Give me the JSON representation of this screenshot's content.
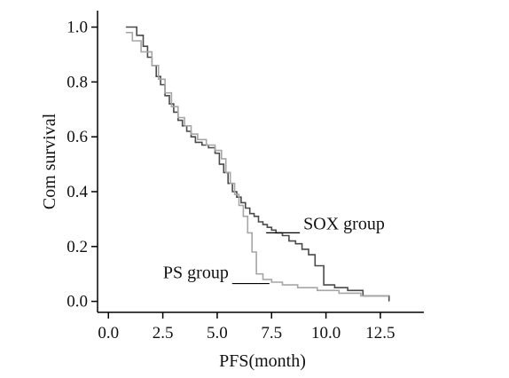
{
  "chart_data": {
    "type": "line",
    "step": true,
    "xlabel": "PFS(month)",
    "ylabel": "Com survival",
    "xlim": [
      -0.5,
      14.5
    ],
    "ylim": [
      -0.04,
      1.06
    ],
    "x_ticks": [
      {
        "value": 0.0,
        "label": "0.0"
      },
      {
        "value": 2.5,
        "label": "2.5"
      },
      {
        "value": 5.0,
        "label": "5.0"
      },
      {
        "value": 7.5,
        "label": "7.5"
      },
      {
        "value": 10.0,
        "label": "10.0"
      },
      {
        "value": 12.5,
        "label": "12.5"
      }
    ],
    "y_ticks": [
      {
        "value": 0.0,
        "label": "0.0"
      },
      {
        "value": 0.2,
        "label": "0.2"
      },
      {
        "value": 0.4,
        "label": "0.4"
      },
      {
        "value": 0.6,
        "label": "0.6"
      },
      {
        "value": 0.8,
        "label": "0.8"
      },
      {
        "value": 1.0,
        "label": "1.0"
      }
    ],
    "grid": false,
    "legend": "none",
    "annotations": [
      {
        "text": "SOX group",
        "series": "SOX group",
        "x": 8.8,
        "y": 0.25
      },
      {
        "text": "PS group",
        "series": "PS group",
        "x": 7.4,
        "y": 0.065
      }
    ],
    "series": [
      {
        "name": "SOX group",
        "color": "#4a4a4a",
        "x": [
          0.8,
          1.3,
          1.6,
          1.8,
          2.0,
          2.2,
          2.4,
          2.6,
          2.8,
          3.0,
          3.2,
          3.4,
          3.6,
          3.8,
          4.0,
          4.3,
          4.6,
          4.9,
          5.1,
          5.3,
          5.5,
          5.7,
          5.9,
          6.1,
          6.3,
          6.5,
          6.7,
          6.9,
          7.1,
          7.3,
          7.5,
          7.7,
          8.0,
          8.3,
          8.6,
          8.9,
          9.2,
          9.5,
          9.9,
          10.4,
          11.0,
          11.7,
          12.9
        ],
        "y": [
          1.0,
          0.97,
          0.93,
          0.89,
          0.86,
          0.82,
          0.79,
          0.75,
          0.72,
          0.69,
          0.66,
          0.64,
          0.62,
          0.6,
          0.58,
          0.57,
          0.56,
          0.54,
          0.5,
          0.47,
          0.43,
          0.4,
          0.38,
          0.36,
          0.34,
          0.32,
          0.31,
          0.29,
          0.28,
          0.27,
          0.26,
          0.25,
          0.24,
          0.22,
          0.21,
          0.19,
          0.17,
          0.13,
          0.06,
          0.05,
          0.04,
          0.02,
          0.0
        ]
      },
      {
        "name": "PS group",
        "color": "#a6a6a6",
        "x": [
          0.8,
          1.1,
          1.5,
          2.0,
          2.3,
          2.6,
          2.9,
          3.2,
          3.5,
          3.8,
          4.1,
          4.5,
          4.9,
          5.2,
          5.4,
          5.6,
          5.8,
          6.0,
          6.2,
          6.4,
          6.6,
          6.8,
          7.1,
          7.5,
          8.0,
          8.7,
          9.6,
          10.6,
          11.6,
          12.9
        ],
        "y": [
          0.98,
          0.95,
          0.91,
          0.86,
          0.81,
          0.76,
          0.71,
          0.67,
          0.64,
          0.61,
          0.59,
          0.57,
          0.55,
          0.52,
          0.47,
          0.43,
          0.39,
          0.35,
          0.31,
          0.25,
          0.18,
          0.1,
          0.08,
          0.07,
          0.06,
          0.05,
          0.04,
          0.03,
          0.02,
          0.02
        ]
      }
    ]
  }
}
